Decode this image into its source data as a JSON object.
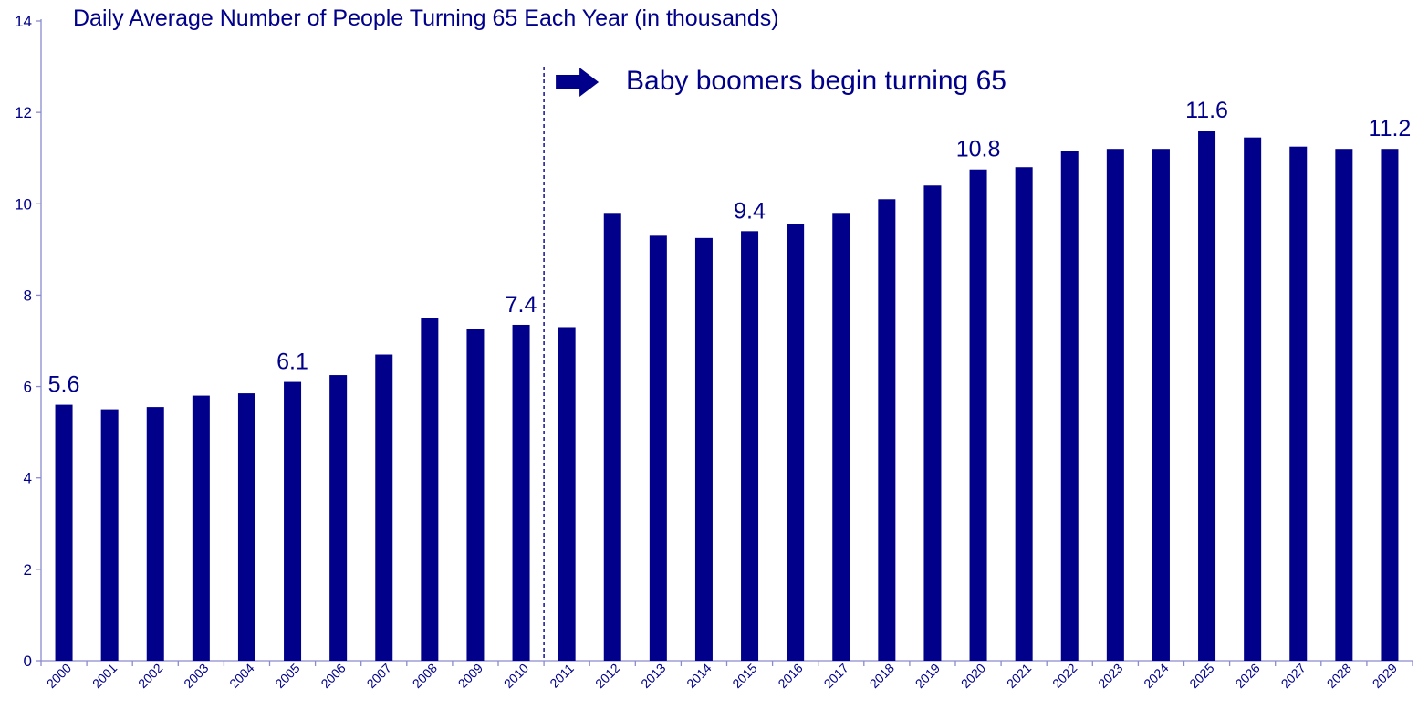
{
  "chart_data": {
    "type": "bar",
    "title": "Daily Average Number of People Turning 65 Each Year (in thousands)",
    "xlabel": "",
    "ylabel": "",
    "ylim": [
      0,
      14
    ],
    "yticks": [
      0,
      2,
      4,
      6,
      8,
      10,
      12,
      14
    ],
    "grid": false,
    "color": "#00008B",
    "categories": [
      "2000",
      "2001",
      "2002",
      "2003",
      "2004",
      "2005",
      "2006",
      "2007",
      "2008",
      "2009",
      "2010",
      "2011",
      "2012",
      "2013",
      "2014",
      "2015",
      "2016",
      "2017",
      "2018",
      "2019",
      "2020",
      "2021",
      "2022",
      "2023",
      "2024",
      "2025",
      "2026",
      "2027",
      "2028",
      "2029"
    ],
    "values": [
      5.6,
      5.5,
      5.55,
      5.8,
      5.85,
      6.1,
      6.25,
      6.7,
      7.5,
      7.25,
      7.35,
      7.3,
      9.8,
      9.3,
      9.25,
      9.4,
      9.55,
      9.8,
      10.1,
      10.4,
      10.75,
      10.8,
      11.15,
      11.2,
      11.2,
      11.6,
      11.45,
      11.25,
      11.2,
      11.2
    ],
    "data_labels": [
      {
        "category": "2000",
        "text": "5.6"
      },
      {
        "category": "2005",
        "text": "6.1"
      },
      {
        "category": "2010",
        "text": "7.4"
      },
      {
        "category": "2015",
        "text": "9.4"
      },
      {
        "category": "2020",
        "text": "10.8"
      },
      {
        "category": "2025",
        "text": "11.6"
      },
      {
        "category": "2029",
        "text": "11.2"
      }
    ],
    "annotation": {
      "text": "Baby boomers begin turning 65",
      "divider_between": [
        "2010",
        "2011"
      ],
      "icon": "right-arrow-icon"
    }
  }
}
